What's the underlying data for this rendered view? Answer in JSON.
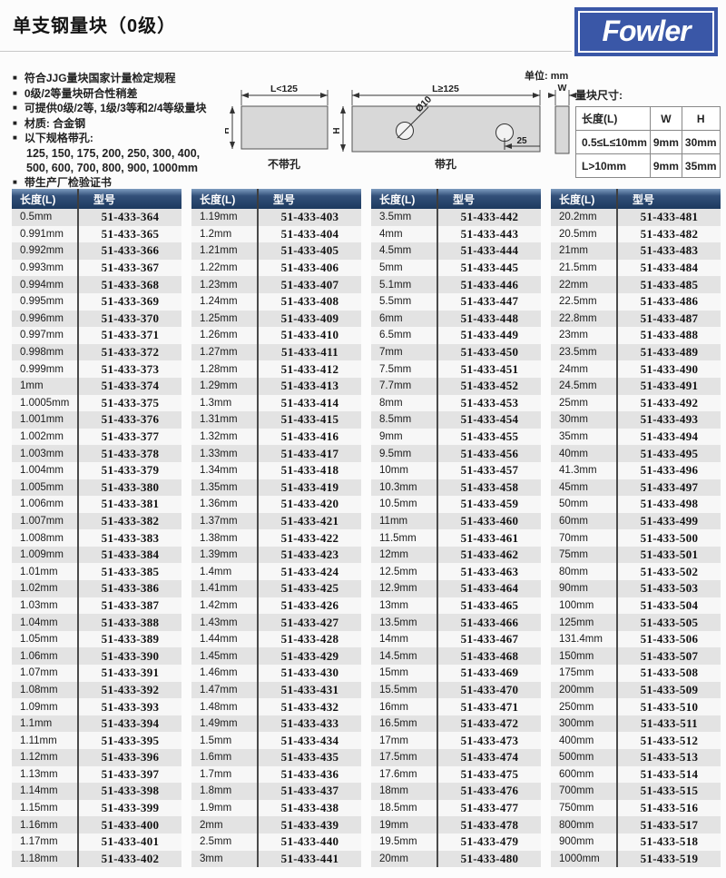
{
  "header": {
    "title": "单支钢量块（0级）",
    "brand": "Fowler"
  },
  "colors": {
    "brand_blue": "#3a57a7",
    "table_header_navy": "#1d3a5e",
    "row_stripe_gray": "#e3e3e3"
  },
  "features": [
    "符合JJG量块国家计量检定规程",
    "0级/2等量块研合性稍差",
    "可提供0级/2等, 1级/3等和2/4等级量块",
    "材质: 合金钢",
    "以下规格带孔:",
    "带生产厂检验证书"
  ],
  "hole_sizes": [
    "125, 150, 175, 200, 250, 300, 400,",
    "500, 600, 700, 800, 900, 1000mm"
  ],
  "diagram": {
    "unit_note": "单位: mm",
    "left": {
      "top_dim": "L<125",
      "height_dim": "H",
      "caption": "不带孔"
    },
    "right": {
      "top_dim": "L≥125",
      "height_dim": "H",
      "hole_diameter": "Ø10",
      "hole_edge_distance": "25",
      "caption": "带孔"
    },
    "side": {
      "width_dim": "W"
    }
  },
  "size_table": {
    "title": "量块尺寸:",
    "headers": [
      "长度(L)",
      "W",
      "H"
    ],
    "rows": [
      [
        "0.5≤L≤10mm",
        "9mm",
        "30mm"
      ],
      [
        "L>10mm",
        "9mm",
        "35mm"
      ]
    ]
  },
  "product_tables": {
    "headers": [
      "长度(L)",
      "型号"
    ],
    "columns": [
      [
        [
          "0.5mm",
          "51-433-364"
        ],
        [
          "0.991mm",
          "51-433-365"
        ],
        [
          "0.992mm",
          "51-433-366"
        ],
        [
          "0.993mm",
          "51-433-367"
        ],
        [
          "0.994mm",
          "51-433-368"
        ],
        [
          "0.995mm",
          "51-433-369"
        ],
        [
          "0.996mm",
          "51-433-370"
        ],
        [
          "0.997mm",
          "51-433-371"
        ],
        [
          "0.998mm",
          "51-433-372"
        ],
        [
          "0.999mm",
          "51-433-373"
        ],
        [
          "1mm",
          "51-433-374"
        ],
        [
          "1.0005mm",
          "51-433-375"
        ],
        [
          "1.001mm",
          "51-433-376"
        ],
        [
          "1.002mm",
          "51-433-377"
        ],
        [
          "1.003mm",
          "51-433-378"
        ],
        [
          "1.004mm",
          "51-433-379"
        ],
        [
          "1.005mm",
          "51-433-380"
        ],
        [
          "1.006mm",
          "51-433-381"
        ],
        [
          "1.007mm",
          "51-433-382"
        ],
        [
          "1.008mm",
          "51-433-383"
        ],
        [
          "1.009mm",
          "51-433-384"
        ],
        [
          "1.01mm",
          "51-433-385"
        ],
        [
          "1.02mm",
          "51-433-386"
        ],
        [
          "1.03mm",
          "51-433-387"
        ],
        [
          "1.04mm",
          "51-433-388"
        ],
        [
          "1.05mm",
          "51-433-389"
        ],
        [
          "1.06mm",
          "51-433-390"
        ],
        [
          "1.07mm",
          "51-433-391"
        ],
        [
          "1.08mm",
          "51-433-392"
        ],
        [
          "1.09mm",
          "51-433-393"
        ],
        [
          "1.1mm",
          "51-433-394"
        ],
        [
          "1.11mm",
          "51-433-395"
        ],
        [
          "1.12mm",
          "51-433-396"
        ],
        [
          "1.13mm",
          "51-433-397"
        ],
        [
          "1.14mm",
          "51-433-398"
        ],
        [
          "1.15mm",
          "51-433-399"
        ],
        [
          "1.16mm",
          "51-433-400"
        ],
        [
          "1.17mm",
          "51-433-401"
        ],
        [
          "1.18mm",
          "51-433-402"
        ]
      ],
      [
        [
          "1.19mm",
          "51-433-403"
        ],
        [
          "1.2mm",
          "51-433-404"
        ],
        [
          "1.21mm",
          "51-433-405"
        ],
        [
          "1.22mm",
          "51-433-406"
        ],
        [
          "1.23mm",
          "51-433-407"
        ],
        [
          "1.24mm",
          "51-433-408"
        ],
        [
          "1.25mm",
          "51-433-409"
        ],
        [
          "1.26mm",
          "51-433-410"
        ],
        [
          "1.27mm",
          "51-433-411"
        ],
        [
          "1.28mm",
          "51-433-412"
        ],
        [
          "1.29mm",
          "51-433-413"
        ],
        [
          "1.3mm",
          "51-433-414"
        ],
        [
          "1.31mm",
          "51-433-415"
        ],
        [
          "1.32mm",
          "51-433-416"
        ],
        [
          "1.33mm",
          "51-433-417"
        ],
        [
          "1.34mm",
          "51-433-418"
        ],
        [
          "1.35mm",
          "51-433-419"
        ],
        [
          "1.36mm",
          "51-433-420"
        ],
        [
          "1.37mm",
          "51-433-421"
        ],
        [
          "1.38mm",
          "51-433-422"
        ],
        [
          "1.39mm",
          "51-433-423"
        ],
        [
          "1.4mm",
          "51-433-424"
        ],
        [
          "1.41mm",
          "51-433-425"
        ],
        [
          "1.42mm",
          "51-433-426"
        ],
        [
          "1.43mm",
          "51-433-427"
        ],
        [
          "1.44mm",
          "51-433-428"
        ],
        [
          "1.45mm",
          "51-433-429"
        ],
        [
          "1.46mm",
          "51-433-430"
        ],
        [
          "1.47mm",
          "51-433-431"
        ],
        [
          "1.48mm",
          "51-433-432"
        ],
        [
          "1.49mm",
          "51-433-433"
        ],
        [
          "1.5mm",
          "51-433-434"
        ],
        [
          "1.6mm",
          "51-433-435"
        ],
        [
          "1.7mm",
          "51-433-436"
        ],
        [
          "1.8mm",
          "51-433-437"
        ],
        [
          "1.9mm",
          "51-433-438"
        ],
        [
          "2mm",
          "51-433-439"
        ],
        [
          "2.5mm",
          "51-433-440"
        ],
        [
          "3mm",
          "51-433-441"
        ]
      ],
      [
        [
          "3.5mm",
          "51-433-442"
        ],
        [
          "4mm",
          "51-433-443"
        ],
        [
          "4.5mm",
          "51-433-444"
        ],
        [
          "5mm",
          "51-433-445"
        ],
        [
          "5.1mm",
          "51-433-446"
        ],
        [
          "5.5mm",
          "51-433-447"
        ],
        [
          "6mm",
          "51-433-448"
        ],
        [
          "6.5mm",
          "51-433-449"
        ],
        [
          "7mm",
          "51-433-450"
        ],
        [
          "7.5mm",
          "51-433-451"
        ],
        [
          "7.7mm",
          "51-433-452"
        ],
        [
          "8mm",
          "51-433-453"
        ],
        [
          "8.5mm",
          "51-433-454"
        ],
        [
          "9mm",
          "51-433-455"
        ],
        [
          "9.5mm",
          "51-433-456"
        ],
        [
          "10mm",
          "51-433-457"
        ],
        [
          "10.3mm",
          "51-433-458"
        ],
        [
          "10.5mm",
          "51-433-459"
        ],
        [
          "11mm",
          "51-433-460"
        ],
        [
          "11.5mm",
          "51-433-461"
        ],
        [
          "12mm",
          "51-433-462"
        ],
        [
          "12.5mm",
          "51-433-463"
        ],
        [
          "12.9mm",
          "51-433-464"
        ],
        [
          "13mm",
          "51-433-465"
        ],
        [
          "13.5mm",
          "51-433-466"
        ],
        [
          "14mm",
          "51-433-467"
        ],
        [
          "14.5mm",
          "51-433-468"
        ],
        [
          "15mm",
          "51-433-469"
        ],
        [
          "15.5mm",
          "51-433-470"
        ],
        [
          "16mm",
          "51-433-471"
        ],
        [
          "16.5mm",
          "51-433-472"
        ],
        [
          "17mm",
          "51-433-473"
        ],
        [
          "17.5mm",
          "51-433-474"
        ],
        [
          "17.6mm",
          "51-433-475"
        ],
        [
          "18mm",
          "51-433-476"
        ],
        [
          "18.5mm",
          "51-433-477"
        ],
        [
          "19mm",
          "51-433-478"
        ],
        [
          "19.5mm",
          "51-433-479"
        ],
        [
          "20mm",
          "51-433-480"
        ]
      ],
      [
        [
          "20.2mm",
          "51-433-481"
        ],
        [
          "20.5mm",
          "51-433-482"
        ],
        [
          "21mm",
          "51-433-483"
        ],
        [
          "21.5mm",
          "51-433-484"
        ],
        [
          "22mm",
          "51-433-485"
        ],
        [
          "22.5mm",
          "51-433-486"
        ],
        [
          "22.8mm",
          "51-433-487"
        ],
        [
          "23mm",
          "51-433-488"
        ],
        [
          "23.5mm",
          "51-433-489"
        ],
        [
          "24mm",
          "51-433-490"
        ],
        [
          "24.5mm",
          "51-433-491"
        ],
        [
          "25mm",
          "51-433-492"
        ],
        [
          "30mm",
          "51-433-493"
        ],
        [
          "35mm",
          "51-433-494"
        ],
        [
          "40mm",
          "51-433-495"
        ],
        [
          "41.3mm",
          "51-433-496"
        ],
        [
          "45mm",
          "51-433-497"
        ],
        [
          "50mm",
          "51-433-498"
        ],
        [
          "60mm",
          "51-433-499"
        ],
        [
          "70mm",
          "51-433-500"
        ],
        [
          "75mm",
          "51-433-501"
        ],
        [
          "80mm",
          "51-433-502"
        ],
        [
          "90mm",
          "51-433-503"
        ],
        [
          "100mm",
          "51-433-504"
        ],
        [
          "125mm",
          "51-433-505"
        ],
        [
          "131.4mm",
          "51-433-506"
        ],
        [
          "150mm",
          "51-433-507"
        ],
        [
          "175mm",
          "51-433-508"
        ],
        [
          "200mm",
          "51-433-509"
        ],
        [
          "250mm",
          "51-433-510"
        ],
        [
          "300mm",
          "51-433-511"
        ],
        [
          "400mm",
          "51-433-512"
        ],
        [
          "500mm",
          "51-433-513"
        ],
        [
          "600mm",
          "51-433-514"
        ],
        [
          "700mm",
          "51-433-515"
        ],
        [
          "750mm",
          "51-433-516"
        ],
        [
          "800mm",
          "51-433-517"
        ],
        [
          "900mm",
          "51-433-518"
        ],
        [
          "1000mm",
          "51-433-519"
        ]
      ]
    ]
  }
}
